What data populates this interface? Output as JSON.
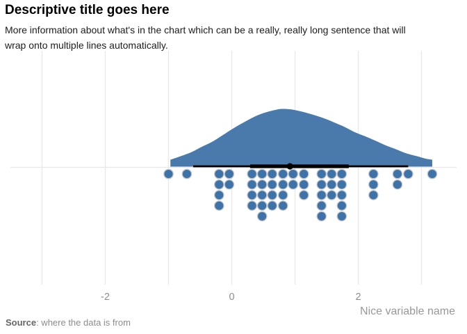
{
  "footer": {
    "source_label": "Source",
    "source_text": ": where the data is from"
  },
  "chart_data": {
    "type": "raincloud (half-eye density + point interval + dot histogram)",
    "title": "Descriptive title goes here",
    "subtitle": "More information about what's in the chart which can be a really, really long sentence that will wrap onto multiple lines automatically.",
    "xlabel": "Nice variable name",
    "x_axis_range": [
      -3.5,
      3.55
    ],
    "x_ticks": [
      -2,
      0,
      2
    ],
    "x_gridlines": [
      -3,
      -2,
      -1,
      0,
      1,
      2,
      3
    ],
    "grid": true,
    "legend": false,
    "density_x_h": [
      [
        -0.97,
        0.12
      ],
      [
        -0.81,
        0.18
      ],
      [
        -0.64,
        0.25
      ],
      [
        -0.48,
        0.34
      ],
      [
        -0.31,
        0.43
      ],
      [
        -0.15,
        0.54
      ],
      [
        0.02,
        0.66
      ],
      [
        0.18,
        0.76
      ],
      [
        0.35,
        0.86
      ],
      [
        0.51,
        0.93
      ],
      [
        0.68,
        0.98
      ],
      [
        0.79,
        1.0
      ],
      [
        0.95,
        0.99
      ],
      [
        1.12,
        0.95
      ],
      [
        1.28,
        0.9
      ],
      [
        1.45,
        0.84
      ],
      [
        1.61,
        0.77
      ],
      [
        1.78,
        0.69
      ],
      [
        1.94,
        0.6
      ],
      [
        2.1,
        0.53
      ],
      [
        2.27,
        0.45
      ],
      [
        2.43,
        0.37
      ],
      [
        2.6,
        0.3
      ],
      [
        2.76,
        0.23
      ],
      [
        2.93,
        0.18
      ],
      [
        3.06,
        0.14
      ],
      [
        3.17,
        0.12
      ]
    ],
    "interval": {
      "outer": [
        -0.61,
        2.79
      ],
      "inner": [
        0.29,
        1.85
      ],
      "point": 0.92
    },
    "dot_columns": [
      [
        -1.0,
        1
      ],
      [
        -0.71,
        1
      ],
      [
        -0.2,
        4
      ],
      [
        -0.04,
        2
      ],
      [
        0.32,
        4
      ],
      [
        0.48,
        5
      ],
      [
        0.64,
        4
      ],
      [
        0.81,
        4
      ],
      [
        0.97,
        2
      ],
      [
        1.14,
        3
      ],
      [
        1.42,
        5
      ],
      [
        1.58,
        3
      ],
      [
        1.74,
        5
      ],
      [
        2.24,
        3
      ],
      [
        2.62,
        2
      ],
      [
        2.79,
        1
      ],
      [
        3.17,
        1
      ]
    ],
    "n_points": 50,
    "colors": {
      "density": "#4a7aab",
      "dots": "#3e73a9",
      "dot_stroke": "#c9c9c9",
      "grid": "#e8e8e8",
      "interval": "#000000",
      "tick_text": "#8e8e8e"
    }
  }
}
